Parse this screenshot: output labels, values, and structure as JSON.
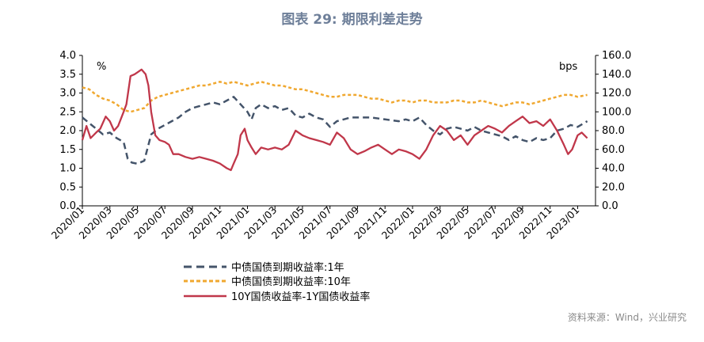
{
  "title": "图表 29: 期限利差走势",
  "source": "资料来源：Wind，兴业研究",
  "colors": {
    "yield_1y": "#44546A",
    "yield_10y": "#F0A830",
    "spread": "#C0374A",
    "axis": "#000000"
  },
  "chart_data": {
    "type": "line",
    "left_unit": "%",
    "right_unit": "bps",
    "y_left": {
      "range": [
        0,
        4
      ],
      "ticks": [
        "0.0",
        "0.5",
        "1.0",
        "1.5",
        "2.0",
        "2.5",
        "3.0",
        "3.5",
        "4.0"
      ]
    },
    "y_right": {
      "range": [
        0,
        160
      ],
      "ticks": [
        "0.0",
        "20.0",
        "40.0",
        "60.0",
        "80.0",
        "100.0",
        "120.0",
        "140.0",
        "160.0"
      ]
    },
    "x": {
      "start": "2020/01",
      "end": "2023/02",
      "tick_labels": [
        "2020/01",
        "2020/03",
        "2020/05",
        "2020/07",
        "2020/09",
        "2020/11",
        "2021/01",
        "2021/03",
        "2021/05",
        "2021/07",
        "2021/09",
        "2021/11",
        "2022/01",
        "2022/03",
        "2022/05",
        "2022/07",
        "2022/09",
        "2022/11",
        "2023/01"
      ]
    },
    "series": [
      {
        "name": "中债国债到期收益率:1年",
        "axis": "left",
        "style": "dashed",
        "points": [
          [
            0,
            2.35
          ],
          [
            1,
            2.05
          ],
          [
            1.5,
            1.9
          ],
          [
            2,
            1.95
          ],
          [
            2.5,
            1.8
          ],
          [
            3,
            1.7
          ],
          [
            3.3,
            1.25
          ],
          [
            3.6,
            1.15
          ],
          [
            4,
            1.12
          ],
          [
            4.5,
            1.2
          ],
          [
            5,
            1.9
          ],
          [
            5.5,
            2.05
          ],
          [
            6,
            2.15
          ],
          [
            6.5,
            2.25
          ],
          [
            7,
            2.35
          ],
          [
            7.5,
            2.5
          ],
          [
            8,
            2.6
          ],
          [
            8.5,
            2.65
          ],
          [
            9,
            2.7
          ],
          [
            9.5,
            2.75
          ],
          [
            10,
            2.7
          ],
          [
            10.5,
            2.8
          ],
          [
            11,
            2.9
          ],
          [
            11.5,
            2.7
          ],
          [
            12,
            2.5
          ],
          [
            12.3,
            2.3
          ],
          [
            12.6,
            2.6
          ],
          [
            13,
            2.7
          ],
          [
            13.5,
            2.6
          ],
          [
            14,
            2.65
          ],
          [
            14.5,
            2.55
          ],
          [
            15,
            2.6
          ],
          [
            15.5,
            2.4
          ],
          [
            16,
            2.35
          ],
          [
            16.5,
            2.45
          ],
          [
            17,
            2.35
          ],
          [
            17.5,
            2.3
          ],
          [
            18,
            2.1
          ],
          [
            18.5,
            2.25
          ],
          [
            19,
            2.3
          ],
          [
            19.5,
            2.35
          ],
          [
            20,
            2.35
          ],
          [
            21,
            2.35
          ],
          [
            22,
            2.3
          ],
          [
            23,
            2.25
          ],
          [
            23.5,
            2.3
          ],
          [
            24,
            2.25
          ],
          [
            24.5,
            2.35
          ],
          [
            25,
            2.15
          ],
          [
            25.5,
            2.0
          ],
          [
            26,
            1.9
          ],
          [
            26.5,
            2.05
          ],
          [
            27,
            2.1
          ],
          [
            27.5,
            2.05
          ],
          [
            28,
            2.0
          ],
          [
            28.5,
            2.1
          ],
          [
            29,
            2.0
          ],
          [
            29.5,
            1.95
          ],
          [
            30,
            1.9
          ],
          [
            30.5,
            1.85
          ],
          [
            31,
            1.75
          ],
          [
            31.5,
            1.85
          ],
          [
            32,
            1.75
          ],
          [
            32.5,
            1.7
          ],
          [
            33,
            1.8
          ],
          [
            33.5,
            1.75
          ],
          [
            34,
            1.8
          ],
          [
            34.5,
            2.0
          ],
          [
            35,
            2.05
          ],
          [
            35.5,
            2.15
          ],
          [
            36,
            2.1
          ],
          [
            36.7,
            2.25
          ]
        ]
      },
      {
        "name": "中债国债到期收益率:10年",
        "axis": "left",
        "style": "dashed",
        "points": [
          [
            0,
            3.15
          ],
          [
            0.5,
            3.1
          ],
          [
            1,
            2.95
          ],
          [
            1.5,
            2.85
          ],
          [
            2,
            2.8
          ],
          [
            2.5,
            2.7
          ],
          [
            3,
            2.55
          ],
          [
            3.5,
            2.5
          ],
          [
            4,
            2.55
          ],
          [
            4.5,
            2.6
          ],
          [
            5,
            2.8
          ],
          [
            5.5,
            2.9
          ],
          [
            6,
            2.95
          ],
          [
            6.5,
            3.0
          ],
          [
            7,
            3.05
          ],
          [
            7.5,
            3.1
          ],
          [
            8,
            3.15
          ],
          [
            8.5,
            3.2
          ],
          [
            9,
            3.2
          ],
          [
            9.5,
            3.25
          ],
          [
            10,
            3.3
          ],
          [
            10.5,
            3.25
          ],
          [
            11,
            3.3
          ],
          [
            11.5,
            3.25
          ],
          [
            12,
            3.2
          ],
          [
            12.5,
            3.25
          ],
          [
            13,
            3.3
          ],
          [
            13.5,
            3.25
          ],
          [
            14,
            3.2
          ],
          [
            14.5,
            3.2
          ],
          [
            15,
            3.15
          ],
          [
            15.5,
            3.1
          ],
          [
            16,
            3.1
          ],
          [
            16.5,
            3.05
          ],
          [
            17,
            3.0
          ],
          [
            17.5,
            2.95
          ],
          [
            18,
            2.9
          ],
          [
            18.5,
            2.9
          ],
          [
            19,
            2.95
          ],
          [
            19.5,
            2.95
          ],
          [
            20,
            2.95
          ],
          [
            20.5,
            2.9
          ],
          [
            21,
            2.85
          ],
          [
            21.5,
            2.85
          ],
          [
            22,
            2.8
          ],
          [
            22.5,
            2.75
          ],
          [
            23,
            2.8
          ],
          [
            23.5,
            2.8
          ],
          [
            24,
            2.75
          ],
          [
            24.5,
            2.8
          ],
          [
            25,
            2.8
          ],
          [
            25.5,
            2.75
          ],
          [
            26,
            2.75
          ],
          [
            26.5,
            2.75
          ],
          [
            27,
            2.8
          ],
          [
            27.5,
            2.8
          ],
          [
            28,
            2.75
          ],
          [
            28.5,
            2.75
          ],
          [
            29,
            2.8
          ],
          [
            29.5,
            2.75
          ],
          [
            30,
            2.7
          ],
          [
            30.5,
            2.65
          ],
          [
            31,
            2.7
          ],
          [
            31.5,
            2.75
          ],
          [
            32,
            2.75
          ],
          [
            32.5,
            2.7
          ],
          [
            33,
            2.75
          ],
          [
            33.5,
            2.8
          ],
          [
            34,
            2.85
          ],
          [
            34.5,
            2.9
          ],
          [
            35,
            2.95
          ],
          [
            35.5,
            2.95
          ],
          [
            36,
            2.9
          ],
          [
            36.7,
            2.95
          ]
        ]
      },
      {
        "name": "10Y国债收益率-1Y国债收益率",
        "axis": "right",
        "style": "solid",
        "points": [
          [
            0,
            70
          ],
          [
            0.3,
            85
          ],
          [
            0.6,
            72
          ],
          [
            1,
            78
          ],
          [
            1.3,
            82
          ],
          [
            1.7,
            95
          ],
          [
            2,
            90
          ],
          [
            2.3,
            80
          ],
          [
            2.6,
            85
          ],
          [
            3,
            100
          ],
          [
            3.2,
            108
          ],
          [
            3.5,
            138
          ],
          [
            3.8,
            140
          ],
          [
            4,
            142
          ],
          [
            4.3,
            145
          ],
          [
            4.6,
            140
          ],
          [
            4.8,
            128
          ],
          [
            5,
            100
          ],
          [
            5.3,
            75
          ],
          [
            5.6,
            70
          ],
          [
            6,
            68
          ],
          [
            6.3,
            65
          ],
          [
            6.6,
            55
          ],
          [
            7,
            55
          ],
          [
            7.5,
            52
          ],
          [
            8,
            50
          ],
          [
            8.5,
            52
          ],
          [
            9,
            50
          ],
          [
            9.5,
            48
          ],
          [
            10,
            45
          ],
          [
            10.5,
            40
          ],
          [
            10.8,
            38
          ],
          [
            11,
            45
          ],
          [
            11.3,
            55
          ],
          [
            11.5,
            75
          ],
          [
            11.8,
            82
          ],
          [
            12,
            70
          ],
          [
            12.3,
            62
          ],
          [
            12.6,
            55
          ],
          [
            13,
            62
          ],
          [
            13.5,
            60
          ],
          [
            14,
            62
          ],
          [
            14.5,
            60
          ],
          [
            15,
            65
          ],
          [
            15.5,
            80
          ],
          [
            16,
            75
          ],
          [
            16.5,
            72
          ],
          [
            17,
            70
          ],
          [
            17.5,
            68
          ],
          [
            18,
            65
          ],
          [
            18.5,
            78
          ],
          [
            19,
            72
          ],
          [
            19.5,
            60
          ],
          [
            20,
            55
          ],
          [
            20.5,
            58
          ],
          [
            21,
            62
          ],
          [
            21.5,
            65
          ],
          [
            22,
            60
          ],
          [
            22.5,
            55
          ],
          [
            23,
            60
          ],
          [
            23.5,
            58
          ],
          [
            24,
            55
          ],
          [
            24.5,
            50
          ],
          [
            25,
            60
          ],
          [
            25.5,
            75
          ],
          [
            26,
            85
          ],
          [
            26.5,
            80
          ],
          [
            27,
            70
          ],
          [
            27.5,
            75
          ],
          [
            28,
            65
          ],
          [
            28.5,
            75
          ],
          [
            29,
            80
          ],
          [
            29.5,
            85
          ],
          [
            30,
            82
          ],
          [
            30.5,
            78
          ],
          [
            31,
            85
          ],
          [
            31.5,
            90
          ],
          [
            32,
            95
          ],
          [
            32.5,
            88
          ],
          [
            33,
            90
          ],
          [
            33.5,
            85
          ],
          [
            34,
            92
          ],
          [
            34.5,
            80
          ],
          [
            35,
            65
          ],
          [
            35.3,
            55
          ],
          [
            35.6,
            60
          ],
          [
            36,
            75
          ],
          [
            36.3,
            78
          ],
          [
            36.7,
            72
          ]
        ]
      }
    ]
  }
}
